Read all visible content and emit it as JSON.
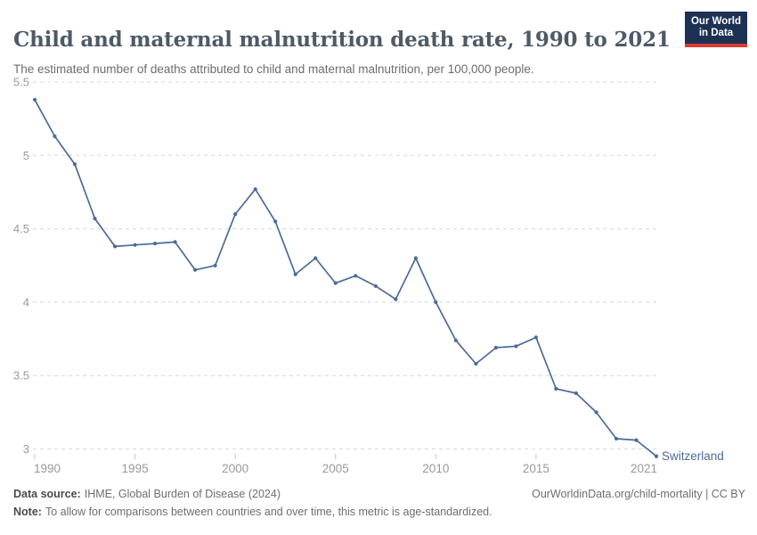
{
  "header": {
    "logo": {
      "line1": "Our World",
      "line2": "in Data",
      "bg_color": "#1d3154",
      "bar_color": "#d93a32"
    }
  },
  "chart_data": {
    "type": "line",
    "title": "Child and maternal malnutrition death rate, 1990 to 2021",
    "subtitle": "The estimated number of deaths attributed to child and maternal malnutrition, per 100,000 people.",
    "x": [
      1990,
      1991,
      1992,
      1993,
      1994,
      1995,
      1996,
      1997,
      1998,
      1999,
      2000,
      2001,
      2002,
      2003,
      2004,
      2005,
      2006,
      2007,
      2008,
      2009,
      2010,
      2011,
      2012,
      2013,
      2014,
      2015,
      2016,
      2017,
      2018,
      2019,
      2020,
      2021
    ],
    "series": [
      {
        "name": "Switzerland",
        "color": "#4c6a9c",
        "values": [
          5.38,
          5.13,
          4.94,
          4.57,
          4.38,
          4.39,
          4.4,
          4.41,
          4.22,
          4.25,
          4.6,
          4.77,
          4.55,
          4.19,
          4.3,
          4.13,
          4.18,
          4.11,
          4.02,
          4.3,
          4.0,
          3.74,
          3.58,
          3.69,
          3.7,
          3.76,
          3.41,
          3.38,
          3.25,
          3.07,
          3.06,
          2.95
        ]
      }
    ],
    "xlim": [
      1990,
      2021
    ],
    "ylim": [
      3,
      5.5
    ],
    "xticks": [
      1990,
      1995,
      2000,
      2005,
      2010,
      2015,
      2021
    ],
    "yticks": [
      3,
      3.5,
      4,
      4.5,
      5,
      5.5
    ],
    "grid": true,
    "grid_style": "dashed",
    "legend_position": "end-of-line",
    "marker": "circle",
    "axis_label_color": "#999999",
    "grid_color": "#d8d8d8",
    "xlabel": "",
    "ylabel": ""
  },
  "footer": {
    "source_label": "Data source:",
    "source": "IHME, Global Burden of Disease (2024)",
    "credit": "OurWorldinData.org/child-mortality | CC BY",
    "note_label": "Note:",
    "note": "To allow for comparisons between countries and over time, this metric is age-standardized."
  }
}
